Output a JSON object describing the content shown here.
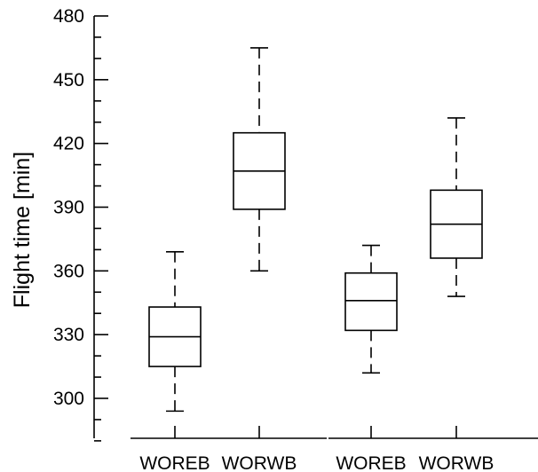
{
  "chart_data": {
    "type": "box",
    "ylabel": "Flight time [min]",
    "ylim": [
      280,
      480
    ],
    "yticks": [
      300,
      330,
      360,
      390,
      420,
      450,
      480
    ],
    "minor_tick_step": 10,
    "categories": [
      "WOREB",
      "WORWB",
      "WOREB",
      "WORWB"
    ],
    "groups": [
      {
        "boxes": [
          0,
          1
        ]
      },
      {
        "boxes": [
          2,
          3
        ]
      }
    ],
    "boxes": [
      {
        "category": "WOREB",
        "min": 294,
        "q1": 315,
        "median": 329,
        "q3": 343,
        "max": 369
      },
      {
        "category": "WORWB",
        "min": 360,
        "q1": 389,
        "median": 407,
        "q3": 425,
        "max": 465
      },
      {
        "category": "WOREB",
        "min": 312,
        "q1": 332,
        "median": 346,
        "q3": 359,
        "max": 372
      },
      {
        "category": "WORWB",
        "min": 348,
        "q1": 366,
        "median": 382,
        "q3": 398,
        "max": 432
      }
    ],
    "colors": {
      "line": "#000000",
      "box_fill": "#ffffff"
    }
  }
}
